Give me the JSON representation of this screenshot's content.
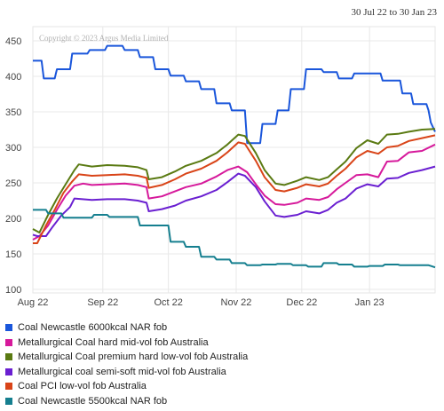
{
  "header": {
    "date_range": "30 Jul 22 to 30 Jan 23"
  },
  "chart_data": {
    "type": "line",
    "copyright": "Copyright © 2023 Argus Media Limited",
    "ylim": [
      95,
      470
    ],
    "yticks": [
      100,
      150,
      200,
      250,
      300,
      350,
      400,
      450
    ],
    "xlim": [
      "2022-07-30",
      "2023-01-30"
    ],
    "xticks": [
      {
        "label": "Aug 22",
        "date": "2022-07-30"
      },
      {
        "label": "Sep 22",
        "date": "2022-08-31"
      },
      {
        "label": "Oct 22",
        "date": "2022-09-30"
      },
      {
        "label": "Nov 22",
        "date": "2022-10-31"
      },
      {
        "label": "Dec 22",
        "date": "2022-11-30"
      },
      {
        "label": "Jan 23",
        "date": "2022-12-31"
      }
    ],
    "grid": true,
    "legend_position": "bottom",
    "series": [
      {
        "name": "Coal Newcastle 6000kcal NAR fob",
        "color": "#1a56db",
        "points": [
          [
            "2022-07-30",
            422
          ],
          [
            "2022-08-03",
            422
          ],
          [
            "2022-08-04",
            397
          ],
          [
            "2022-08-09",
            397
          ],
          [
            "2022-08-10",
            410
          ],
          [
            "2022-08-16",
            410
          ],
          [
            "2022-08-17",
            432
          ],
          [
            "2022-08-24",
            432
          ],
          [
            "2022-08-25",
            437
          ],
          [
            "2022-09-01",
            437
          ],
          [
            "2022-09-02",
            443
          ],
          [
            "2022-09-09",
            443
          ],
          [
            "2022-09-10",
            437
          ],
          [
            "2022-09-16",
            437
          ],
          [
            "2022-09-17",
            427
          ],
          [
            "2022-09-23",
            427
          ],
          [
            "2022-09-24",
            410
          ],
          [
            "2022-09-30",
            410
          ],
          [
            "2022-10-01",
            401
          ],
          [
            "2022-10-07",
            401
          ],
          [
            "2022-10-08",
            393
          ],
          [
            "2022-10-14",
            393
          ],
          [
            "2022-10-15",
            382
          ],
          [
            "2022-10-21",
            382
          ],
          [
            "2022-10-22",
            362
          ],
          [
            "2022-10-28",
            362
          ],
          [
            "2022-10-29",
            352
          ],
          [
            "2022-11-04",
            352
          ],
          [
            "2022-11-05",
            306
          ],
          [
            "2022-11-11",
            306
          ],
          [
            "2022-11-12",
            333
          ],
          [
            "2022-11-18",
            333
          ],
          [
            "2022-11-19",
            352
          ],
          [
            "2022-11-24",
            352
          ],
          [
            "2022-11-25",
            382
          ],
          [
            "2022-12-01",
            382
          ],
          [
            "2022-12-02",
            410
          ],
          [
            "2022-12-09",
            410
          ],
          [
            "2022-12-10",
            406
          ],
          [
            "2022-12-16",
            406
          ],
          [
            "2022-12-17",
            397
          ],
          [
            "2022-12-23",
            397
          ],
          [
            "2022-12-24",
            404
          ],
          [
            "2023-01-05",
            404
          ],
          [
            "2023-01-06",
            394
          ],
          [
            "2023-01-14",
            394
          ],
          [
            "2023-01-15",
            376
          ],
          [
            "2023-01-19",
            376
          ],
          [
            "2023-01-20",
            361
          ],
          [
            "2023-01-26",
            361
          ],
          [
            "2023-01-27",
            352
          ],
          [
            "2023-01-28",
            335
          ],
          [
            "2023-01-30",
            322
          ]
        ]
      },
      {
        "name": "Metallurgical Coal hard mid-vol fob Australia",
        "color": "#d6199b",
        "points": [
          [
            "2022-07-30",
            170
          ],
          [
            "2022-08-02",
            175
          ],
          [
            "2022-08-06",
            190
          ],
          [
            "2022-08-10",
            212
          ],
          [
            "2022-08-14",
            232
          ],
          [
            "2022-08-18",
            246
          ],
          [
            "2022-08-22",
            249
          ],
          [
            "2022-08-26",
            247
          ],
          [
            "2022-09-02",
            248
          ],
          [
            "2022-09-10",
            249
          ],
          [
            "2022-09-16",
            247
          ],
          [
            "2022-09-20",
            244
          ],
          [
            "2022-09-21",
            228
          ],
          [
            "2022-09-27",
            231
          ],
          [
            "2022-10-03",
            238
          ],
          [
            "2022-10-08",
            244
          ],
          [
            "2022-10-15",
            249
          ],
          [
            "2022-10-22",
            259
          ],
          [
            "2022-10-27",
            268
          ],
          [
            "2022-11-01",
            273
          ],
          [
            "2022-11-05",
            265
          ],
          [
            "2022-11-09",
            248
          ],
          [
            "2022-11-13",
            232
          ],
          [
            "2022-11-18",
            220
          ],
          [
            "2022-11-22",
            219
          ],
          [
            "2022-11-28",
            222
          ],
          [
            "2022-12-02",
            228
          ],
          [
            "2022-12-08",
            226
          ],
          [
            "2022-12-12",
            230
          ],
          [
            "2022-12-16",
            241
          ],
          [
            "2022-12-20",
            250
          ],
          [
            "2022-12-25",
            261
          ],
          [
            "2022-12-30",
            262
          ],
          [
            "2023-01-04",
            258
          ],
          [
            "2023-01-08",
            280
          ],
          [
            "2023-01-13",
            281
          ],
          [
            "2023-01-18",
            293
          ],
          [
            "2023-01-24",
            295
          ],
          [
            "2023-01-30",
            304
          ]
        ]
      },
      {
        "name": "Metallurgical Coal premium hard low-vol fob Australia",
        "color": "#5a7a12",
        "points": [
          [
            "2022-07-30",
            185
          ],
          [
            "2022-08-02",
            180
          ],
          [
            "2022-08-06",
            205
          ],
          [
            "2022-08-10",
            228
          ],
          [
            "2022-08-14",
            248
          ],
          [
            "2022-08-18",
            268
          ],
          [
            "2022-08-20",
            276
          ],
          [
            "2022-08-26",
            273
          ],
          [
            "2022-09-02",
            275
          ],
          [
            "2022-09-10",
            274
          ],
          [
            "2022-09-16",
            272
          ],
          [
            "2022-09-20",
            268
          ],
          [
            "2022-09-21",
            255
          ],
          [
            "2022-09-27",
            258
          ],
          [
            "2022-10-03",
            266
          ],
          [
            "2022-10-08",
            274
          ],
          [
            "2022-10-15",
            281
          ],
          [
            "2022-10-22",
            292
          ],
          [
            "2022-10-27",
            304
          ],
          [
            "2022-11-01",
            318
          ],
          [
            "2022-11-04",
            316
          ],
          [
            "2022-11-09",
            292
          ],
          [
            "2022-11-13",
            268
          ],
          [
            "2022-11-18",
            249
          ],
          [
            "2022-11-22",
            247
          ],
          [
            "2022-11-28",
            253
          ],
          [
            "2022-12-02",
            258
          ],
          [
            "2022-12-08",
            254
          ],
          [
            "2022-12-12",
            258
          ],
          [
            "2022-12-16",
            269
          ],
          [
            "2022-12-20",
            280
          ],
          [
            "2022-12-25",
            299
          ],
          [
            "2022-12-30",
            310
          ],
          [
            "2023-01-04",
            305
          ],
          [
            "2023-01-08",
            318
          ],
          [
            "2023-01-13",
            319
          ],
          [
            "2023-01-18",
            322
          ],
          [
            "2023-01-24",
            325
          ],
          [
            "2023-01-30",
            326
          ]
        ]
      },
      {
        "name": "Metallurgical coal semi-soft mid-vol fob Australia",
        "color": "#6a1fd1",
        "points": [
          [
            "2022-07-30",
            177
          ],
          [
            "2022-08-01",
            175
          ],
          [
            "2022-08-05",
            175
          ],
          [
            "2022-08-08",
            188
          ],
          [
            "2022-08-12",
            204
          ],
          [
            "2022-08-16",
            216
          ],
          [
            "2022-08-18",
            228
          ],
          [
            "2022-08-26",
            226
          ],
          [
            "2022-09-02",
            227
          ],
          [
            "2022-09-10",
            227
          ],
          [
            "2022-09-16",
            225
          ],
          [
            "2022-09-20",
            222
          ],
          [
            "2022-09-21",
            210
          ],
          [
            "2022-09-27",
            213
          ],
          [
            "2022-10-03",
            218
          ],
          [
            "2022-10-08",
            225
          ],
          [
            "2022-10-15",
            231
          ],
          [
            "2022-10-22",
            240
          ],
          [
            "2022-10-27",
            251
          ],
          [
            "2022-11-01",
            263
          ],
          [
            "2022-11-04",
            260
          ],
          [
            "2022-11-09",
            244
          ],
          [
            "2022-11-13",
            224
          ],
          [
            "2022-11-18",
            204
          ],
          [
            "2022-11-22",
            202
          ],
          [
            "2022-11-28",
            205
          ],
          [
            "2022-12-02",
            210
          ],
          [
            "2022-12-08",
            207
          ],
          [
            "2022-12-12",
            212
          ],
          [
            "2022-12-16",
            222
          ],
          [
            "2022-12-20",
            228
          ],
          [
            "2022-12-25",
            242
          ],
          [
            "2022-12-30",
            248
          ],
          [
            "2023-01-04",
            245
          ],
          [
            "2023-01-08",
            256
          ],
          [
            "2023-01-13",
            257
          ],
          [
            "2023-01-18",
            264
          ],
          [
            "2023-01-24",
            268
          ],
          [
            "2023-01-30",
            273
          ]
        ]
      },
      {
        "name": "Coal PCI low-vol fob Australia",
        "color": "#d94418",
        "points": [
          [
            "2022-07-30",
            165
          ],
          [
            "2022-08-01",
            165
          ],
          [
            "2022-08-05",
            190
          ],
          [
            "2022-08-09",
            212
          ],
          [
            "2022-08-13",
            236
          ],
          [
            "2022-08-17",
            252
          ],
          [
            "2022-08-20",
            262
          ],
          [
            "2022-08-26",
            260
          ],
          [
            "2022-09-02",
            261
          ],
          [
            "2022-09-10",
            262
          ],
          [
            "2022-09-16",
            260
          ],
          [
            "2022-09-20",
            257
          ],
          [
            "2022-09-21",
            243
          ],
          [
            "2022-09-27",
            247
          ],
          [
            "2022-10-03",
            255
          ],
          [
            "2022-10-08",
            263
          ],
          [
            "2022-10-15",
            270
          ],
          [
            "2022-10-22",
            281
          ],
          [
            "2022-10-27",
            293
          ],
          [
            "2022-11-01",
            307
          ],
          [
            "2022-11-04",
            305
          ],
          [
            "2022-11-09",
            281
          ],
          [
            "2022-11-13",
            258
          ],
          [
            "2022-11-18",
            240
          ],
          [
            "2022-11-22",
            238
          ],
          [
            "2022-11-28",
            243
          ],
          [
            "2022-12-02",
            248
          ],
          [
            "2022-12-08",
            245
          ],
          [
            "2022-12-12",
            249
          ],
          [
            "2022-12-16",
            260
          ],
          [
            "2022-12-20",
            270
          ],
          [
            "2022-12-25",
            286
          ],
          [
            "2022-12-30",
            295
          ],
          [
            "2023-01-04",
            291
          ],
          [
            "2023-01-08",
            300
          ],
          [
            "2023-01-13",
            302
          ],
          [
            "2023-01-18",
            309
          ],
          [
            "2023-01-24",
            313
          ],
          [
            "2023-01-30",
            317
          ]
        ]
      },
      {
        "name": "Coal Newcastle 5500kcal NAR fob",
        "color": "#157f8f",
        "points": [
          [
            "2022-07-30",
            212
          ],
          [
            "2022-08-05",
            212
          ],
          [
            "2022-08-06",
            207
          ],
          [
            "2022-08-12",
            207
          ],
          [
            "2022-08-13",
            201
          ],
          [
            "2022-08-26",
            201
          ],
          [
            "2022-08-27",
            205
          ],
          [
            "2022-09-02",
            205
          ],
          [
            "2022-09-03",
            202
          ],
          [
            "2022-09-16",
            202
          ],
          [
            "2022-09-17",
            190
          ],
          [
            "2022-09-30",
            190
          ],
          [
            "2022-10-01",
            167
          ],
          [
            "2022-10-07",
            167
          ],
          [
            "2022-10-08",
            160
          ],
          [
            "2022-10-14",
            160
          ],
          [
            "2022-10-15",
            146
          ],
          [
            "2022-10-21",
            146
          ],
          [
            "2022-10-22",
            142
          ],
          [
            "2022-10-28",
            142
          ],
          [
            "2022-10-29",
            137
          ],
          [
            "2022-11-04",
            137
          ],
          [
            "2022-11-05",
            134
          ],
          [
            "2022-11-11",
            134
          ],
          [
            "2022-11-12",
            135
          ],
          [
            "2022-11-18",
            135
          ],
          [
            "2022-11-19",
            136
          ],
          [
            "2022-11-25",
            136
          ],
          [
            "2022-11-26",
            134
          ],
          [
            "2022-12-02",
            134
          ],
          [
            "2022-12-03",
            132
          ],
          [
            "2022-12-09",
            132
          ],
          [
            "2022-12-10",
            137
          ],
          [
            "2022-12-16",
            137
          ],
          [
            "2022-12-17",
            135
          ],
          [
            "2022-12-23",
            135
          ],
          [
            "2022-12-24",
            132
          ],
          [
            "2022-12-30",
            132
          ],
          [
            "2022-12-31",
            133
          ],
          [
            "2023-01-06",
            133
          ],
          [
            "2023-01-07",
            135
          ],
          [
            "2023-01-13",
            135
          ],
          [
            "2023-01-14",
            134
          ],
          [
            "2023-01-27",
            134
          ],
          [
            "2023-01-28",
            133
          ],
          [
            "2023-01-30",
            131
          ]
        ]
      }
    ]
  }
}
